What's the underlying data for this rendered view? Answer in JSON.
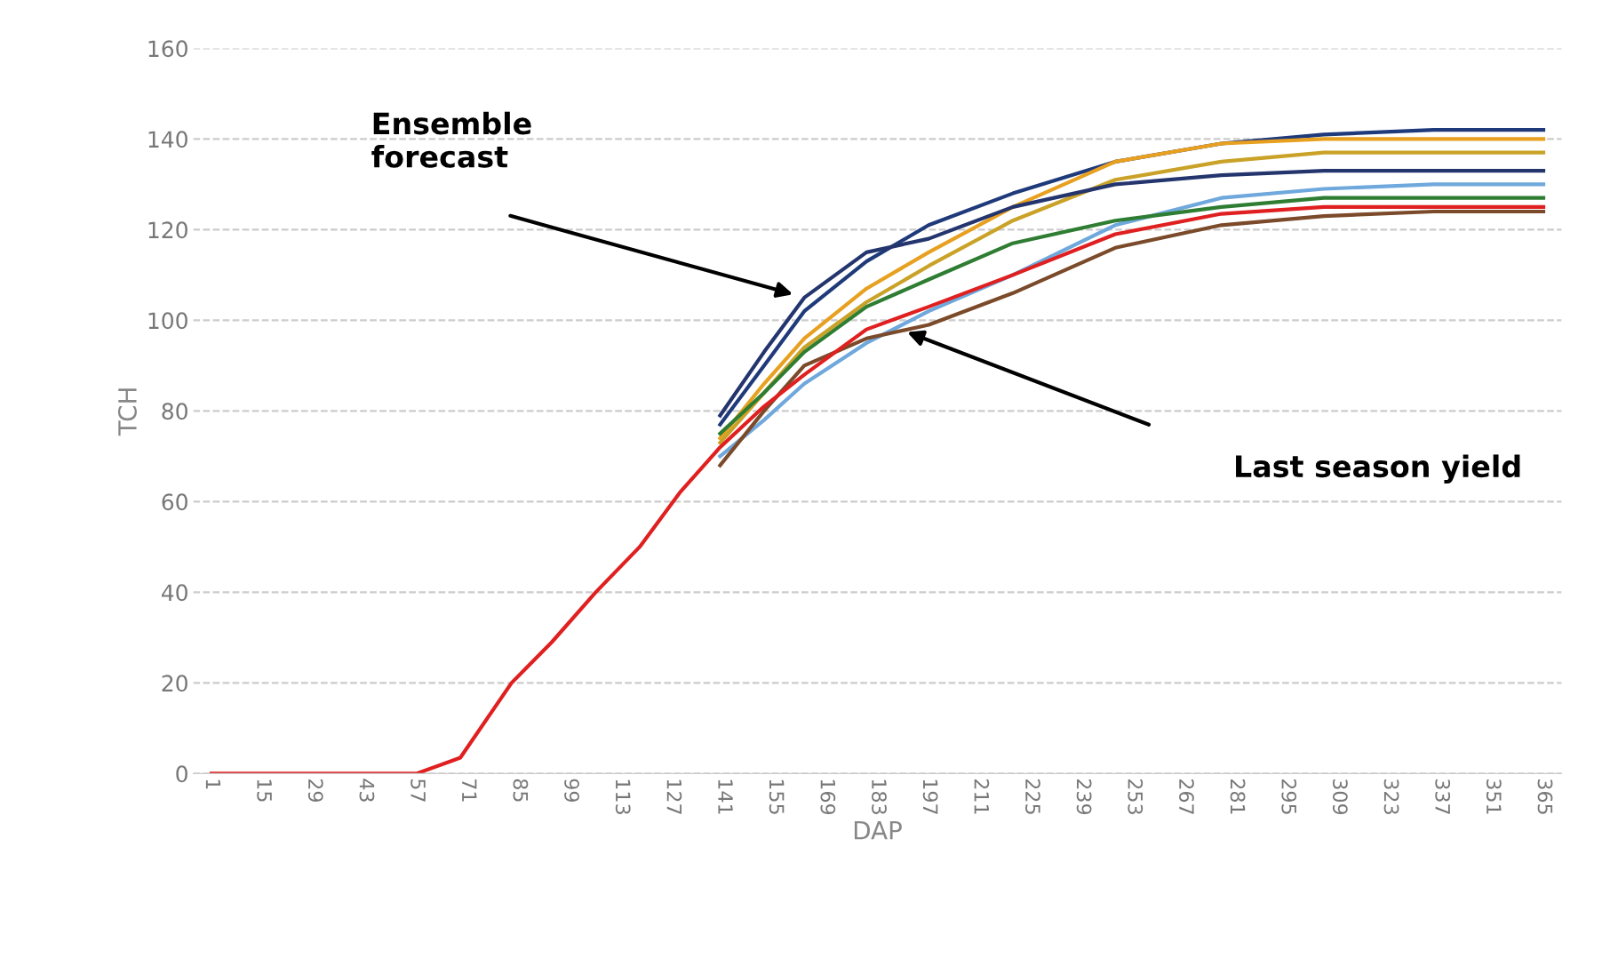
{
  "chart_data": {
    "type": "line",
    "xlabel": "DAP",
    "ylabel": "TCH",
    "x": [
      1,
      57,
      69,
      83,
      94,
      106,
      118,
      129,
      140,
      152,
      163,
      180,
      197,
      220,
      248,
      277,
      305,
      335,
      365
    ],
    "xlim": [
      -4,
      370
    ],
    "xticks": [
      1,
      15,
      29,
      43,
      57,
      71,
      85,
      99,
      113,
      127,
      141,
      155,
      169,
      183,
      197,
      211,
      225,
      239,
      253,
      267,
      281,
      295,
      309,
      323,
      337,
      351,
      365
    ],
    "ylim": [
      0,
      160
    ],
    "yticks": [
      0,
      20,
      40,
      60,
      80,
      100,
      120,
      140,
      160
    ],
    "grid": "y",
    "line_style": "solid",
    "marker": "none",
    "series": [
      {
        "color": "#1f3a7a",
        "x": [
          140,
          152,
          163,
          180,
          197,
          220,
          248,
          277,
          305,
          335,
          365
        ],
        "values": [
          77,
          90,
          102,
          113,
          121,
          128,
          135,
          139,
          141,
          142,
          142
        ]
      },
      {
        "color": "#e8a020",
        "x": [
          140,
          152,
          163,
          180,
          197,
          220,
          248,
          277,
          305,
          335,
          365
        ],
        "values": [
          74,
          86,
          96,
          107,
          115,
          125,
          135,
          139,
          140,
          140,
          140
        ]
      },
      {
        "color": "#c9a227",
        "x": [
          140,
          152,
          163,
          180,
          197,
          220,
          248,
          277,
          305,
          335,
          365
        ],
        "values": [
          73,
          84,
          94,
          104,
          112,
          122,
          131,
          135,
          137,
          137,
          137
        ]
      },
      {
        "color": "#24356e",
        "x": [
          140,
          152,
          163,
          180,
          197,
          220,
          248,
          277,
          305,
          335,
          365
        ],
        "values": [
          79,
          93,
          105,
          115,
          118,
          125,
          130,
          132,
          133,
          133,
          133
        ]
      },
      {
        "color": "#6fa8dc",
        "x": [
          140,
          152,
          163,
          180,
          197,
          220,
          248,
          277,
          305,
          335,
          365
        ],
        "values": [
          70,
          78,
          86,
          95,
          102,
          110,
          121,
          127,
          129,
          130,
          130
        ]
      },
      {
        "color": "#2e7d32",
        "x": [
          140,
          152,
          163,
          180,
          197,
          220,
          248,
          277,
          305,
          335,
          365
        ],
        "values": [
          75,
          84,
          93,
          103,
          109,
          117,
          122,
          125,
          127,
          127,
          127
        ]
      },
      {
        "color": "#7b4a2a",
        "x": [
          140,
          152,
          163,
          180,
          197,
          220,
          248,
          277,
          305,
          335,
          365
        ],
        "values": [
          68,
          80,
          90,
          96,
          99,
          106,
          116,
          121,
          123,
          124,
          124
        ]
      },
      {
        "color": "#e02020",
        "values": [
          0,
          0,
          3.5,
          20,
          29,
          40,
          50,
          62,
          72,
          81,
          88,
          98,
          103,
          110,
          119,
          123.5,
          125,
          125,
          125
        ]
      }
    ],
    "annotations": [
      "Ensemble\nforecast",
      "Last season yield"
    ]
  }
}
